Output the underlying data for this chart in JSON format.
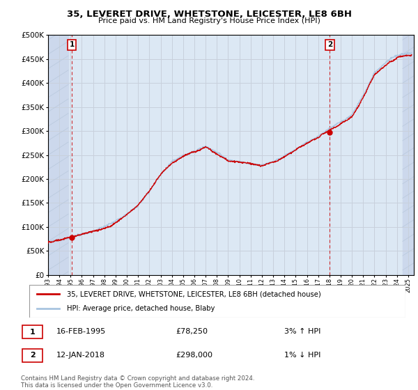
{
  "title": "35, LEVERET DRIVE, WHETSTONE, LEICESTER, LE8 6BH",
  "subtitle": "Price paid vs. HM Land Registry's House Price Index (HPI)",
  "ylim": [
    0,
    500000
  ],
  "yticks": [
    0,
    50000,
    100000,
    150000,
    200000,
    250000,
    300000,
    350000,
    400000,
    450000,
    500000
  ],
  "ytick_labels": [
    "£0",
    "£50K",
    "£100K",
    "£150K",
    "£200K",
    "£250K",
    "£300K",
    "£350K",
    "£400K",
    "£450K",
    "£500K"
  ],
  "xmin": 1993,
  "xmax": 2025.5,
  "sale1_date": 1995.12,
  "sale1_price": 78250,
  "sale1_label": "1",
  "sale2_date": 2018.04,
  "sale2_price": 298000,
  "sale2_label": "2",
  "legend_line1": "35, LEVERET DRIVE, WHETSTONE, LEICESTER, LE8 6BH (detached house)",
  "legend_line2": "HPI: Average price, detached house, Blaby",
  "ann1_date": "16-FEB-1995",
  "ann1_price": "£78,250",
  "ann1_hpi": "3% ↑ HPI",
  "ann2_date": "12-JAN-2018",
  "ann2_price": "£298,000",
  "ann2_hpi": "1% ↓ HPI",
  "footer": "Contains HM Land Registry data © Crown copyright and database right 2024.\nThis data is licensed under the Open Government Licence v3.0.",
  "hpi_color": "#a8c4e0",
  "sale_color": "#cc0000",
  "grid_color": "#c8d0dc",
  "plot_bg": "#dce8f4",
  "hatch_bg": "#ccd8ec"
}
